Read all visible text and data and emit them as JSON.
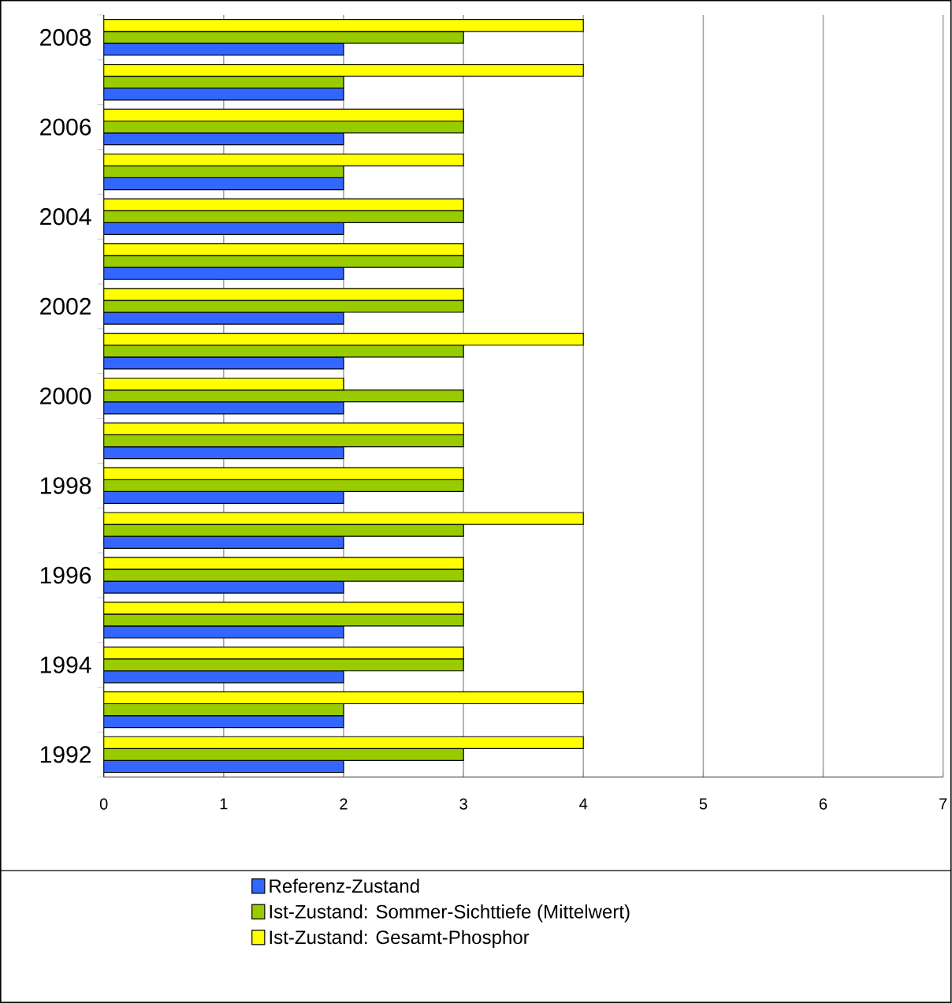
{
  "chart_data": {
    "type": "bar",
    "orientation": "horizontal",
    "categories": [
      "2008",
      null,
      "2006",
      null,
      "2004",
      null,
      "2002",
      null,
      "2000",
      null,
      "1998",
      null,
      "1996",
      null,
      "1994",
      null,
      "1992"
    ],
    "series": [
      {
        "name": "Referenz-Zustand",
        "color": "#3366ff",
        "values": [
          2,
          2,
          2,
          2,
          2,
          2,
          2,
          2,
          2,
          2,
          2,
          2,
          2,
          2,
          2,
          2,
          2
        ]
      },
      {
        "name": "Ist-Zustand: Sommer-Sichttiefe (Mittelwert)",
        "color": "#99cc00",
        "values": [
          3,
          2,
          3,
          2,
          3,
          3,
          3,
          3,
          3,
          3,
          3,
          3,
          3,
          3,
          3,
          2,
          3
        ]
      },
      {
        "name": "Ist-Zustand: Gesamt-Phosphor",
        "color": "#ffff00",
        "values": [
          4,
          4,
          3,
          3,
          3,
          3,
          3,
          4,
          2,
          3,
          3,
          4,
          3,
          3,
          3,
          4,
          4
        ]
      }
    ],
    "xlim": [
      0,
      7
    ],
    "xticks": [
      0,
      1,
      2,
      3,
      4,
      5,
      6,
      7
    ],
    "grid": "x",
    "legend": "bottom"
  }
}
